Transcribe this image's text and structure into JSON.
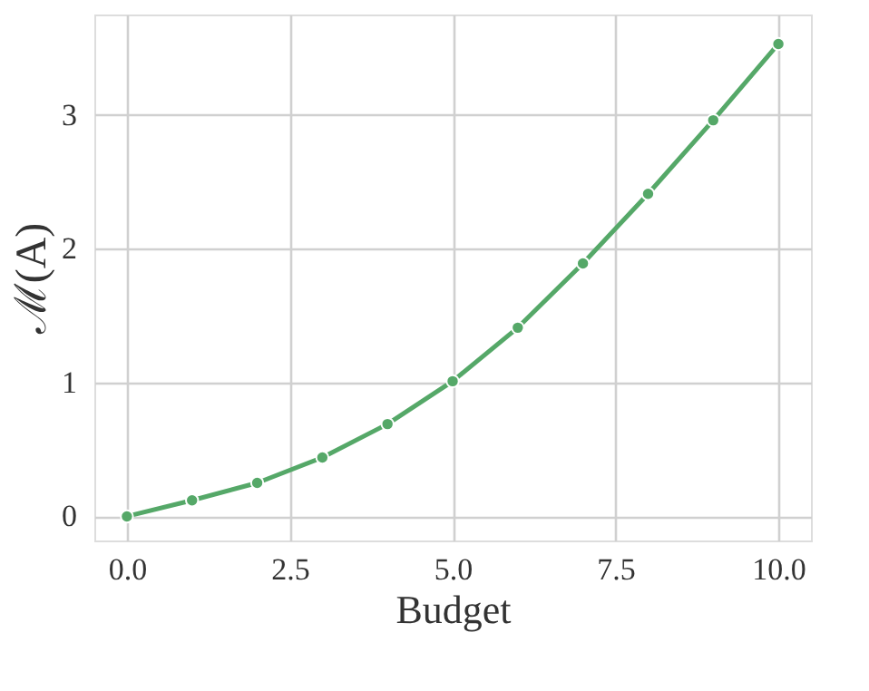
{
  "chart_data": {
    "type": "line",
    "xlabel": "Budget",
    "ylabel": "ℳ(A)",
    "x": [
      0,
      1,
      2,
      3,
      4,
      5,
      6,
      7,
      8,
      9,
      10
    ],
    "series": [
      {
        "color": "#55a868",
        "values": [
          0,
          0.12,
          0.25,
          0.44,
          0.69,
          1.01,
          1.41,
          1.89,
          2.41,
          2.96,
          3.53
        ]
      }
    ],
    "xlim": [
      -0.5,
      10.5
    ],
    "xticks": [
      {
        "value": 0,
        "label": "0.0"
      },
      {
        "value": 2.5,
        "label": "2.5"
      },
      {
        "value": 5,
        "label": "5.0"
      },
      {
        "value": 7.5,
        "label": "7.5"
      },
      {
        "value": 10,
        "label": "10.0"
      }
    ],
    "ylim": [
      -0.18,
      3.75
    ],
    "yticks": [
      0,
      1,
      2,
      3
    ],
    "grid": true,
    "marker": "circle",
    "line_style": "solid"
  }
}
